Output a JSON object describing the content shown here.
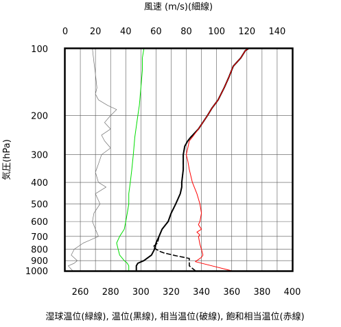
{
  "chart_data": {
    "type": "line",
    "top_axis": {
      "label": "風速 (m/s)(細線)",
      "range": [
        0,
        150
      ],
      "ticks": [
        0,
        20,
        40,
        60,
        80,
        100,
        120,
        140
      ]
    },
    "bottom_axis": {
      "label": "湿球温位(緑線), 温位(黒線), 相当温位(破線), 飽和相当温位(赤線)",
      "range": [
        250,
        400
      ],
      "ticks": [
        260,
        280,
        300,
        320,
        340,
        360,
        380,
        400
      ]
    },
    "left_axis": {
      "label": "気圧(hPa)",
      "scale": "log",
      "range": [
        1000,
        100
      ],
      "ticks": [
        100,
        200,
        300,
        400,
        500,
        600,
        700,
        800,
        900,
        1000
      ]
    },
    "grid": true,
    "series": [
      {
        "name": "風速",
        "axis": "top",
        "color": "#707070",
        "style": "thin",
        "points": [
          [
            5,
            1000
          ],
          [
            2,
            950
          ],
          [
            6,
            925
          ],
          [
            8,
            900
          ],
          [
            4,
            850
          ],
          [
            6,
            800
          ],
          [
            12,
            750
          ],
          [
            22,
            700
          ],
          [
            20,
            650
          ],
          [
            18,
            600
          ],
          [
            19,
            550
          ],
          [
            23,
            500
          ],
          [
            20,
            450
          ],
          [
            27,
            420
          ],
          [
            22,
            400
          ],
          [
            20,
            360
          ],
          [
            22,
            330
          ],
          [
            24,
            300
          ],
          [
            30,
            280
          ],
          [
            26,
            260
          ],
          [
            24,
            245
          ],
          [
            30,
            230
          ],
          [
            26,
            215
          ],
          [
            30,
            200
          ],
          [
            34,
            188
          ],
          [
            28,
            180
          ],
          [
            22,
            170
          ],
          [
            20,
            160
          ],
          [
            21,
            150
          ],
          [
            20,
            130
          ],
          [
            19,
            115
          ],
          [
            18,
            100
          ]
        ]
      },
      {
        "name": "湿球温位",
        "axis": "bottom",
        "color": "#00dd00",
        "style": "solid",
        "points": [
          [
            292,
            1000
          ],
          [
            292,
            950
          ],
          [
            291,
            925
          ],
          [
            289,
            900
          ],
          [
            286,
            850
          ],
          [
            285,
            800
          ],
          [
            284,
            750
          ],
          [
            286,
            700
          ],
          [
            289,
            650
          ],
          [
            290,
            600
          ],
          [
            291,
            550
          ],
          [
            292,
            500
          ],
          [
            292,
            450
          ],
          [
            293,
            400
          ],
          [
            294,
            350
          ],
          [
            295,
            300
          ],
          [
            296,
            250
          ],
          [
            298,
            200
          ],
          [
            299,
            180
          ],
          [
            300,
            150
          ],
          [
            301,
            125
          ],
          [
            301,
            110
          ],
          [
            302,
            100
          ]
        ]
      },
      {
        "name": "温位",
        "axis": "bottom",
        "color": "#000000",
        "style": "bold",
        "points": [
          [
            297,
            1000
          ],
          [
            297,
            950
          ],
          [
            298,
            925
          ],
          [
            302,
            900
          ],
          [
            307,
            850
          ],
          [
            309,
            800
          ],
          [
            310,
            750
          ],
          [
            312,
            700
          ],
          [
            314,
            650
          ],
          [
            318,
            600
          ],
          [
            320,
            550
          ],
          [
            323,
            500
          ],
          [
            326,
            450
          ],
          [
            327,
            420
          ],
          [
            327,
            400
          ],
          [
            328,
            350
          ],
          [
            328,
            300
          ],
          [
            329,
            275
          ],
          [
            331,
            260
          ],
          [
            333,
            250
          ],
          [
            338,
            230
          ],
          [
            344,
            200
          ],
          [
            347,
            185
          ],
          [
            351,
            170
          ],
          [
            355,
            150
          ],
          [
            358,
            135
          ],
          [
            361,
            120
          ],
          [
            366,
            110
          ],
          [
            369,
            102
          ],
          [
            371,
            100
          ]
        ]
      },
      {
        "name": "相当温位",
        "axis": "bottom",
        "color": "#000000",
        "style": "dashed",
        "points": [
          [
            336,
            1000
          ],
          [
            332,
            950
          ],
          [
            332,
            900
          ],
          [
            332,
            880
          ],
          [
            323,
            855
          ],
          [
            315,
            830
          ],
          [
            313,
            820
          ],
          [
            310,
            800
          ],
          [
            309,
            790
          ],
          [
            308,
            780
          ],
          [
            309,
            770
          ],
          [
            311,
            750
          ],
          [
            312,
            700
          ],
          [
            314,
            650
          ],
          [
            318,
            600
          ],
          [
            320,
            550
          ],
          [
            323,
            500
          ],
          [
            326,
            450
          ],
          [
            327,
            420
          ],
          [
            327,
            400
          ],
          [
            328,
            350
          ],
          [
            328,
            300
          ],
          [
            329,
            275
          ],
          [
            331,
            260
          ],
          [
            333,
            250
          ],
          [
            338,
            230
          ],
          [
            344,
            200
          ],
          [
            347,
            185
          ],
          [
            351,
            170
          ],
          [
            355,
            150
          ],
          [
            358,
            135
          ],
          [
            361,
            120
          ],
          [
            366,
            110
          ],
          [
            369,
            102
          ],
          [
            371,
            100
          ]
        ]
      },
      {
        "name": "飽和相当温位",
        "axis": "bottom",
        "color": "#ff0000",
        "style": "solid",
        "points": [
          [
            360,
            1000
          ],
          [
            347,
            950
          ],
          [
            336,
            910
          ],
          [
            340,
            870
          ],
          [
            341,
            850
          ],
          [
            340,
            800
          ],
          [
            339,
            760
          ],
          [
            338,
            700
          ],
          [
            339,
            690
          ],
          [
            337,
            670
          ],
          [
            340,
            650
          ],
          [
            338,
            620
          ],
          [
            339,
            600
          ],
          [
            340,
            550
          ],
          [
            339,
            500
          ],
          [
            337,
            450
          ],
          [
            334,
            400
          ],
          [
            332,
            350
          ],
          [
            331,
            320
          ],
          [
            330,
            300
          ],
          [
            331,
            280
          ],
          [
            332,
            260
          ],
          [
            334,
            250
          ],
          [
            338,
            230
          ],
          [
            344,
            200
          ],
          [
            347,
            185
          ],
          [
            351,
            170
          ],
          [
            355,
            150
          ],
          [
            358,
            135
          ],
          [
            361,
            120
          ],
          [
            366,
            110
          ],
          [
            369,
            102
          ],
          [
            371,
            100
          ]
        ]
      }
    ]
  }
}
